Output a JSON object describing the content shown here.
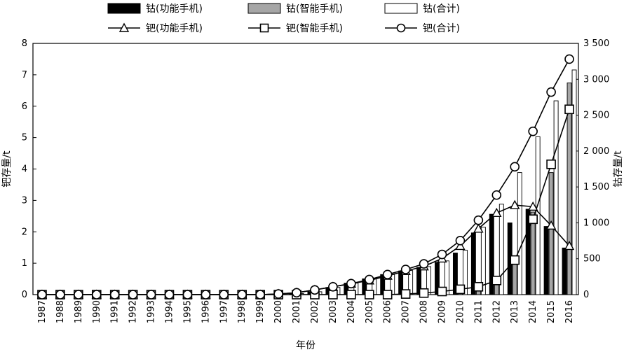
{
  "chart_data": {
    "type": "bar+line",
    "x_label": "年份",
    "y_left_label": "钯存量/t",
    "y_right_label": "钴存量/t",
    "y_left_range": [
      0,
      8
    ],
    "y_left_ticks": [
      "0",
      "1",
      "2",
      "3",
      "4",
      "5",
      "6",
      "7",
      "8"
    ],
    "y_right_range": [
      0,
      3500
    ],
    "y_right_ticks": [
      "0",
      "500",
      "1 000",
      "1 500",
      "2 000",
      "2 500",
      "3 000",
      "3 500"
    ],
    "categories": [
      "1987",
      "1988",
      "1989",
      "1990",
      "1991",
      "1992",
      "1993",
      "1994",
      "1995",
      "1996",
      "1997",
      "1998",
      "1999",
      "2000",
      "2001",
      "2002",
      "2003",
      "2004",
      "2005",
      "2006",
      "2007",
      "2008",
      "2009",
      "2010",
      "2011",
      "2012",
      "2013",
      "2014",
      "2015",
      "2016"
    ],
    "bar_series": [
      {
        "name": "钴(功能手机)",
        "axis": "right",
        "fill": "#000000",
        "values": [
          0,
          0,
          0,
          0,
          0,
          0,
          0,
          0,
          0,
          0,
          0,
          0,
          0,
          0,
          15,
          40,
          100,
          160,
          220,
          280,
          330,
          380,
          450,
          580,
          860,
          1120,
          1000,
          1190,
          950,
          650
        ]
      },
      {
        "name": "钴(智能手机)",
        "axis": "right",
        "fill": "#a6a6a6",
        "values": [
          0,
          0,
          0,
          0,
          0,
          0,
          0,
          0,
          0,
          0,
          0,
          0,
          0,
          0,
          0,
          0,
          0,
          0,
          0,
          0,
          5,
          10,
          20,
          40,
          80,
          140,
          450,
          1150,
          1700,
          2950
        ]
      },
      {
        "name": "钴(合计)",
        "axis": "right",
        "fill": "#ffffff",
        "values": [
          0,
          0,
          0,
          0,
          0,
          0,
          0,
          0,
          0,
          0,
          0,
          0,
          0,
          0,
          15,
          40,
          100,
          160,
          220,
          280,
          335,
          390,
          470,
          620,
          940,
          1260,
          1700,
          2200,
          2700,
          3130
        ]
      }
    ],
    "line_series": [
      {
        "name": "钯(功能手机)",
        "axis": "left",
        "marker": "triangle",
        "values": [
          0,
          0,
          0,
          0,
          0,
          0,
          0,
          0,
          0,
          0,
          0,
          0,
          0,
          0.02,
          0.06,
          0.15,
          0.25,
          0.35,
          0.45,
          0.6,
          0.75,
          0.9,
          1.15,
          1.55,
          2.1,
          2.6,
          2.85,
          2.8,
          2.2,
          1.55
        ]
      },
      {
        "name": "钯(智能手机)",
        "axis": "left",
        "marker": "square",
        "values": [
          0,
          0,
          0,
          0,
          0,
          0,
          0,
          0,
          0,
          0,
          0,
          0,
          0,
          0,
          0,
          0,
          0,
          0,
          0,
          0,
          0.02,
          0.05,
          0.1,
          0.17,
          0.25,
          0.45,
          1.1,
          2.4,
          4.15,
          5.9
        ]
      },
      {
        "name": "钯(合计)",
        "axis": "left",
        "marker": "circle",
        "values": [
          0,
          0,
          0,
          0,
          0,
          0,
          0,
          0,
          0,
          0,
          0,
          0,
          0,
          0.02,
          0.06,
          0.15,
          0.25,
          0.35,
          0.48,
          0.64,
          0.8,
          0.98,
          1.28,
          1.72,
          2.37,
          3.17,
          4.07,
          5.2,
          6.45,
          7.5
        ]
      }
    ],
    "legend": [
      {
        "label": "钴(功能手机)",
        "kind": "bar",
        "fill": "#000000"
      },
      {
        "label": "钴(智能手机)",
        "kind": "bar",
        "fill": "#a6a6a6"
      },
      {
        "label": "钴(合计)",
        "kind": "bar",
        "fill": "#ffffff"
      },
      {
        "label": "钯(功能手机)",
        "kind": "line",
        "marker": "triangle"
      },
      {
        "label": "钯(智能手机)",
        "kind": "line",
        "marker": "square"
      },
      {
        "label": "钯(合计)",
        "kind": "line",
        "marker": "circle"
      }
    ]
  }
}
